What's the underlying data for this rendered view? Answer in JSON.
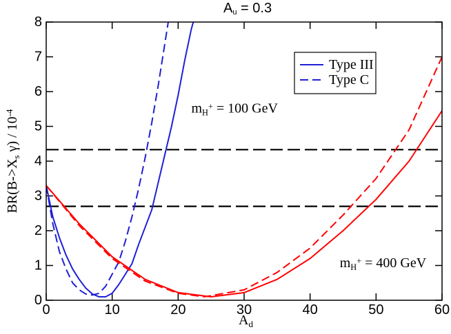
{
  "chart_data": {
    "type": "line",
    "title": [
      "A",
      "u",
      " = 0.3"
    ],
    "x_label": [
      "A",
      "d"
    ],
    "y_label": [
      "BR(B->X",
      "s",
      " γ) / 10",
      "-4"
    ],
    "xlim": [
      0,
      60
    ],
    "xticks": [
      0,
      10,
      20,
      30,
      40,
      50,
      60
    ],
    "ylim": [
      0,
      8
    ],
    "yticks": [
      0,
      1,
      2,
      3,
      4,
      5,
      6,
      7,
      8
    ],
    "legend": "upper right",
    "hlines": [
      4.33,
      2.7
    ],
    "annotations": [
      {
        "text": [
          "m",
          "H",
          "+",
          " = 100 GeV"
        ]
      },
      {
        "text": [
          "m",
          "H",
          "+",
          " = 400 GeV"
        ]
      }
    ],
    "series": [
      {
        "name": "Type III",
        "color": "#1f1fd6",
        "style": "solid",
        "x": [
          0,
          1,
          2,
          3,
          4,
          5,
          6,
          7,
          8,
          9,
          10,
          11,
          12,
          13,
          14,
          15,
          16,
          17,
          18,
          19,
          20,
          21,
          22,
          22.3
        ],
        "values": [
          3.3,
          2.4,
          1.8,
          1.3,
          0.9,
          0.6,
          0.35,
          0.18,
          0.1,
          0.1,
          0.2,
          0.45,
          0.75,
          1.05,
          1.6,
          2.1,
          2.6,
          3.4,
          4.2,
          5.0,
          5.9,
          6.9,
          7.8,
          8
        ]
      },
      {
        "name": "Type C",
        "color": "#1f1fd6",
        "style": "dashed",
        "x": [
          0,
          1,
          2,
          3,
          4,
          5,
          6,
          7,
          8,
          9,
          10,
          11,
          12,
          13,
          14,
          15,
          16,
          17,
          18,
          18.5
        ],
        "values": [
          3.3,
          2.2,
          1.4,
          0.9,
          0.5,
          0.3,
          0.18,
          0.15,
          0.2,
          0.4,
          0.75,
          1.1,
          1.7,
          2.4,
          3.2,
          4.1,
          5.1,
          6.2,
          7.4,
          8
        ]
      },
      {
        "color": "#ff0000",
        "style": "solid",
        "x": [
          0,
          5,
          10,
          15,
          20,
          25,
          30,
          35,
          40,
          45,
          50,
          55,
          60
        ],
        "values": [
          3.3,
          2.2,
          1.25,
          0.6,
          0.22,
          0.1,
          0.22,
          0.6,
          1.2,
          2.0,
          2.9,
          4.0,
          5.45
        ]
      },
      {
        "color": "#ff0000",
        "style": "dashed",
        "x": [
          0,
          5,
          10,
          15,
          20,
          24,
          30,
          35,
          40,
          45,
          50,
          55,
          60
        ],
        "values": [
          3.3,
          2.15,
          1.2,
          0.55,
          0.2,
          0.1,
          0.3,
          0.8,
          1.5,
          2.45,
          3.5,
          4.9,
          7.0
        ]
      }
    ]
  }
}
